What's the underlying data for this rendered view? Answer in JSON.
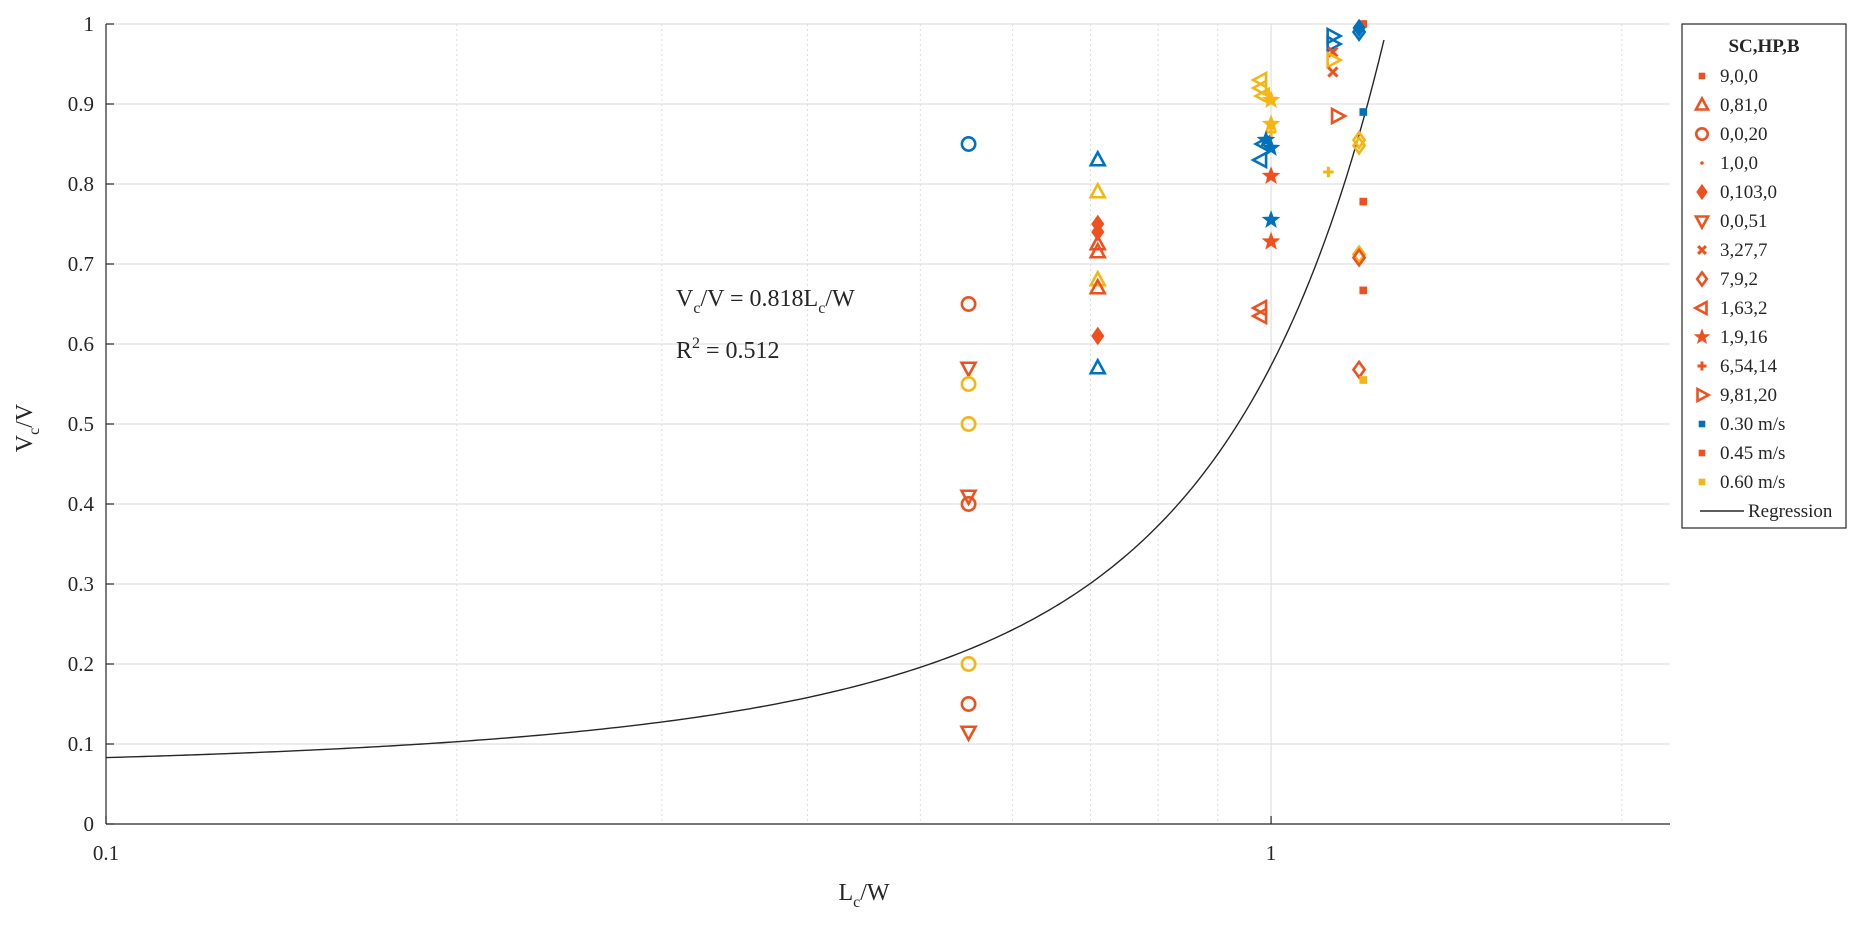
{
  "chart_data": {
    "type": "scatter",
    "x_scale": "log",
    "xlim": [
      0.1,
      2.2
    ],
    "ylim": [
      0,
      1
    ],
    "x_ticks": [
      0.1,
      1
    ],
    "x_tick_labels": [
      "0.1",
      "1"
    ],
    "y_ticks": [
      0,
      0.1,
      0.2,
      0.3,
      0.4,
      0.5,
      0.6,
      0.7,
      0.8,
      0.9,
      1
    ],
    "y_tick_labels": [
      "0",
      "0.1",
      "0.2",
      "0.3",
      "0.4",
      "0.5",
      "0.6",
      "0.7",
      "0.8",
      "0.9",
      "1"
    ],
    "xlabel": {
      "main": "L",
      "sub": "c",
      "rest": "/W"
    },
    "ylabel": {
      "main": "V",
      "sub": "c",
      "rest": "/V"
    },
    "grid": true,
    "annotation": {
      "equation": {
        "p1": "V",
        "sub": "c",
        "p2": "/V = 0.818L",
        "sub2": "c",
        "p3": "/W"
      },
      "r2": {
        "p1": "R",
        "sup": "2",
        "p2": " = 0.512"
      }
    },
    "colors": {
      "blue": "#0072BD",
      "red": "#F0501E",
      "yellow": "#F5B512",
      "line": "#262626"
    },
    "legend": {
      "title": "SC,HP,B",
      "position": "right",
      "entries": [
        {
          "label": "9,0,0",
          "marker": "square-small",
          "color": "red"
        },
        {
          "label": "0,81,0",
          "marker": "triangle-up",
          "color": "red"
        },
        {
          "label": "0,0,20",
          "marker": "circle",
          "color": "red"
        },
        {
          "label": "1,0,0",
          "marker": "dot",
          "color": "red"
        },
        {
          "label": "0,103,0",
          "marker": "diamond-filled",
          "color": "red"
        },
        {
          "label": "0,0,51",
          "marker": "triangle-down",
          "color": "red"
        },
        {
          "label": "3,27,7",
          "marker": "x",
          "color": "red"
        },
        {
          "label": "7,9,2",
          "marker": "diamond",
          "color": "red"
        },
        {
          "label": "1,63,2",
          "marker": "triangle-left",
          "color": "red"
        },
        {
          "label": "1,9,16",
          "marker": "star",
          "color": "red"
        },
        {
          "label": "6,54,14",
          "marker": "plus",
          "color": "red"
        },
        {
          "label": "9,81,20",
          "marker": "triangle-right",
          "color": "red"
        },
        {
          "label": "0.30 m/s",
          "marker": "square-small",
          "color": "blue"
        },
        {
          "label": "0.45 m/s",
          "marker": "square-small",
          "color": "red"
        },
        {
          "label": "0.60 m/s",
          "marker": "square-small",
          "color": "yellow"
        },
        {
          "label": "Regression",
          "marker": "line",
          "color": "line"
        }
      ]
    },
    "regression": {
      "model": "Vc/V = 0.818 * exp(k * Lc/W)",
      "a": 0.818,
      "x_start": 0.1,
      "x_end": 1.25,
      "y_start": 0.083,
      "y_end": 0.98
    },
    "points": [
      {
        "x": 0.55,
        "y": 0.85,
        "marker": "circle",
        "color": "blue"
      },
      {
        "x": 0.55,
        "y": 0.65,
        "marker": "circle",
        "color": "red"
      },
      {
        "x": 0.55,
        "y": 0.57,
        "marker": "triangle-down",
        "color": "red"
      },
      {
        "x": 0.55,
        "y": 0.55,
        "marker": "circle",
        "color": "yellow"
      },
      {
        "x": 0.55,
        "y": 0.5,
        "marker": "circle",
        "color": "yellow"
      },
      {
        "x": 0.55,
        "y": 0.41,
        "marker": "triangle-down",
        "color": "red"
      },
      {
        "x": 0.55,
        "y": 0.4,
        "marker": "circle",
        "color": "red"
      },
      {
        "x": 0.55,
        "y": 0.2,
        "marker": "circle",
        "color": "yellow"
      },
      {
        "x": 0.55,
        "y": 0.15,
        "marker": "circle",
        "color": "red"
      },
      {
        "x": 0.55,
        "y": 0.115,
        "marker": "triangle-down",
        "color": "red"
      },
      {
        "x": 0.71,
        "y": 0.83,
        "marker": "triangle-up",
        "color": "blue"
      },
      {
        "x": 0.71,
        "y": 0.79,
        "marker": "triangle-up",
        "color": "yellow"
      },
      {
        "x": 0.71,
        "y": 0.75,
        "marker": "diamond-filled",
        "color": "red"
      },
      {
        "x": 0.71,
        "y": 0.74,
        "marker": "diamond-filled",
        "color": "red"
      },
      {
        "x": 0.71,
        "y": 0.725,
        "marker": "triangle-up",
        "color": "red"
      },
      {
        "x": 0.71,
        "y": 0.715,
        "marker": "triangle-up",
        "color": "red"
      },
      {
        "x": 0.71,
        "y": 0.68,
        "marker": "triangle-up",
        "color": "yellow"
      },
      {
        "x": 0.71,
        "y": 0.67,
        "marker": "triangle-up",
        "color": "red"
      },
      {
        "x": 0.71,
        "y": 0.61,
        "marker": "diamond-filled",
        "color": "red"
      },
      {
        "x": 0.71,
        "y": 0.57,
        "marker": "triangle-up",
        "color": "blue"
      },
      {
        "x": 0.98,
        "y": 0.93,
        "marker": "triangle-left",
        "color": "yellow"
      },
      {
        "x": 0.98,
        "y": 0.92,
        "marker": "triangle-left",
        "color": "yellow"
      },
      {
        "x": 0.985,
        "y": 0.91,
        "marker": "triangle-left",
        "color": "yellow"
      },
      {
        "x": 1.0,
        "y": 0.905,
        "marker": "star",
        "color": "yellow"
      },
      {
        "x": 1.0,
        "y": 0.875,
        "marker": "star",
        "color": "yellow"
      },
      {
        "x": 1.0,
        "y": 0.865,
        "marker": "plus",
        "color": "yellow"
      },
      {
        "x": 0.99,
        "y": 0.855,
        "marker": "star",
        "color": "blue"
      },
      {
        "x": 0.985,
        "y": 0.85,
        "marker": "triangle-left",
        "color": "blue"
      },
      {
        "x": 1.0,
        "y": 0.845,
        "marker": "star",
        "color": "blue"
      },
      {
        "x": 0.98,
        "y": 0.83,
        "marker": "triangle-left",
        "color": "blue"
      },
      {
        "x": 1.0,
        "y": 0.81,
        "marker": "star",
        "color": "red"
      },
      {
        "x": 1.0,
        "y": 0.755,
        "marker": "star",
        "color": "blue"
      },
      {
        "x": 1.0,
        "y": 0.728,
        "marker": "star",
        "color": "red"
      },
      {
        "x": 0.98,
        "y": 0.645,
        "marker": "triangle-left",
        "color": "red"
      },
      {
        "x": 0.98,
        "y": 0.635,
        "marker": "triangle-left",
        "color": "red"
      },
      {
        "x": 1.13,
        "y": 0.985,
        "marker": "triangle-right",
        "color": "blue"
      },
      {
        "x": 1.13,
        "y": 0.975,
        "marker": "triangle-right",
        "color": "blue"
      },
      {
        "x": 1.13,
        "y": 0.965,
        "marker": "x",
        "color": "red"
      },
      {
        "x": 1.13,
        "y": 0.955,
        "marker": "triangle-right",
        "color": "yellow"
      },
      {
        "x": 1.13,
        "y": 0.94,
        "marker": "x",
        "color": "red"
      },
      {
        "x": 1.14,
        "y": 0.885,
        "marker": "triangle-right",
        "color": "red"
      },
      {
        "x": 1.12,
        "y": 0.815,
        "marker": "plus",
        "color": "yellow"
      },
      {
        "x": 1.2,
        "y": 1.0,
        "marker": "square-small",
        "color": "red"
      },
      {
        "x": 1.19,
        "y": 0.995,
        "marker": "diamond-filled",
        "color": "blue"
      },
      {
        "x": 1.19,
        "y": 0.99,
        "marker": "diamond",
        "color": "blue"
      },
      {
        "x": 1.2,
        "y": 0.89,
        "marker": "square-small",
        "color": "blue"
      },
      {
        "x": 1.19,
        "y": 0.855,
        "marker": "diamond",
        "color": "yellow"
      },
      {
        "x": 1.19,
        "y": 0.848,
        "marker": "diamond",
        "color": "yellow"
      },
      {
        "x": 1.2,
        "y": 0.778,
        "marker": "square-small",
        "color": "red"
      },
      {
        "x": 1.19,
        "y": 0.712,
        "marker": "diamond",
        "color": "yellow"
      },
      {
        "x": 1.19,
        "y": 0.708,
        "marker": "diamond",
        "color": "red"
      },
      {
        "x": 1.2,
        "y": 0.667,
        "marker": "square-small",
        "color": "red"
      },
      {
        "x": 1.19,
        "y": 0.568,
        "marker": "diamond",
        "color": "red"
      },
      {
        "x": 1.2,
        "y": 0.555,
        "marker": "square-small",
        "color": "yellow"
      }
    ]
  }
}
